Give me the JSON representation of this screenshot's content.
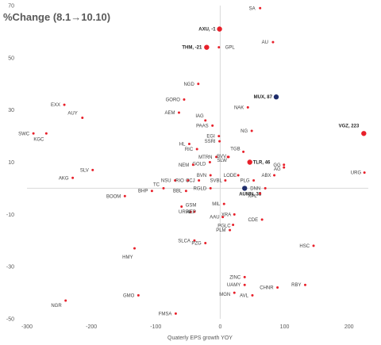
{
  "chart_data": {
    "type": "scatter",
    "title": "%Change  (8.1→10.10)",
    "xlabel": "Quaterly EPS growth YOY",
    "ylabel": "",
    "xlim": [
      -300,
      230
    ],
    "ylim": [
      -50,
      70
    ],
    "xticks": [
      -300,
      -200,
      -100,
      0,
      100,
      200
    ],
    "yticks": [
      70,
      50,
      30,
      10,
      -10,
      -30,
      -50
    ],
    "grid": false,
    "colors": {
      "normal": "#e8202a",
      "highlight_red": "#e8202a",
      "highlight_navy": "#1f2d6b",
      "axis": "#d9d9d9"
    },
    "points": [
      {
        "label": "SA",
        "x": 62,
        "y": 69
      },
      {
        "label": "AXU, -1",
        "x": -1,
        "y": 61,
        "highlight": "red"
      },
      {
        "label": "THM, -21",
        "x": -21,
        "y": 54,
        "highlight": "red"
      },
      {
        "label": "GPL",
        "x": -2,
        "y": 54
      },
      {
        "label": "AU",
        "x": 82,
        "y": 56
      },
      {
        "label": "NGD",
        "x": -34,
        "y": 40
      },
      {
        "label": "MUX, 87",
        "x": 87,
        "y": 35,
        "highlight": "navy"
      },
      {
        "label": "GORO",
        "x": -56,
        "y": 34
      },
      {
        "label": "NAK",
        "x": 43,
        "y": 31
      },
      {
        "label": "EXX",
        "x": -242,
        "y": 32
      },
      {
        "label": "AEM",
        "x": -64,
        "y": 29
      },
      {
        "label": "AUY",
        "x": -214,
        "y": 27
      },
      {
        "label": "IAG",
        "x": -23,
        "y": 26
      },
      {
        "label": "PAAS",
        "x": -12,
        "y": 24
      },
      {
        "label": "NG",
        "x": 49,
        "y": 22
      },
      {
        "label": "VGZ, 223",
        "x": 223,
        "y": 21,
        "highlight": "red"
      },
      {
        "label": "SWC",
        "x": -290,
        "y": 21
      },
      {
        "label": "KGC",
        "x": -270,
        "y": 21
      },
      {
        "label": "EGI",
        "x": -2,
        "y": 20
      },
      {
        "label": "SSRI",
        "x": -1,
        "y": 18
      },
      {
        "label": "HL",
        "x": -48,
        "y": 17
      },
      {
        "label": "RIC",
        "x": -36,
        "y": 15
      },
      {
        "label": "TGB",
        "x": 36,
        "y": 14
      },
      {
        "label": "MTRN",
        "x": -6,
        "y": 12
      },
      {
        "label": "GOLD",
        "x": -16,
        "y": 10
      },
      {
        "label": "BVV",
        "x": 12,
        "y": 12
      },
      {
        "label": "SLW",
        "x": 13,
        "y": 12
      },
      {
        "label": "TLR, 46",
        "x": 46,
        "y": 10,
        "highlight": "red"
      },
      {
        "label": "GG",
        "x": 99,
        "y": 9
      },
      {
        "label": "AG",
        "x": 99,
        "y": 8
      },
      {
        "label": "SLV",
        "x": -198,
        "y": 7
      },
      {
        "label": "NEM",
        "x": -42,
        "y": 9
      },
      {
        "label": "URG",
        "x": 224,
        "y": 6
      },
      {
        "label": "ABX",
        "x": 84,
        "y": 5
      },
      {
        "label": "AKG",
        "x": -229,
        "y": 4
      },
      {
        "label": "BVN",
        "x": -15,
        "y": 5
      },
      {
        "label": "LODE",
        "x": 28,
        "y": 5
      },
      {
        "label": "SVBL",
        "x": 8,
        "y": 3
      },
      {
        "label": "NSU",
        "x": -70,
        "y": 3
      },
      {
        "label": "RIO",
        "x": -50,
        "y": 3
      },
      {
        "label": "CCJ",
        "x": -33,
        "y": 3
      },
      {
        "label": "PLG",
        "x": 52,
        "y": 3
      },
      {
        "label": "TC",
        "x": -88,
        "y": 0
      },
      {
        "label": "RGLD",
        "x": -15,
        "y": 0
      },
      {
        "label": "AUMN, 38",
        "x": 38,
        "y": 0,
        "highlight": "navy"
      },
      {
        "label": "DNN",
        "x": 70,
        "y": 0
      },
      {
        "label": "BBL",
        "x": -53,
        "y": -1
      },
      {
        "label": "BHP",
        "x": -106,
        "y": -1
      },
      {
        "label": "XPL",
        "x": 62,
        "y": -2
      },
      {
        "label": "BOOM",
        "x": -148,
        "y": -3
      },
      {
        "label": "MIL",
        "x": 6,
        "y": -6
      },
      {
        "label": "GSM",
        "x": -60,
        "y": -7
      },
      {
        "label": "URRE",
        "x": -46,
        "y": -9
      },
      {
        "label": "AEP",
        "x": -40,
        "y": -9
      },
      {
        "label": "XRA",
        "x": 22,
        "y": -10
      },
      {
        "label": "AAU",
        "x": 4,
        "y": -11
      },
      {
        "label": "CDE",
        "x": 65,
        "y": -12
      },
      {
        "label": "PGLC",
        "x": 20,
        "y": -14
      },
      {
        "label": "PLM",
        "x": 15,
        "y": -16
      },
      {
        "label": "SLCA",
        "x": -40,
        "y": -20
      },
      {
        "label": "PZG",
        "x": -23,
        "y": -21
      },
      {
        "label": "HSC",
        "x": 145,
        "y": -22
      },
      {
        "label": "HMY",
        "x": -133,
        "y": -23
      },
      {
        "label": "ZINC",
        "x": 38,
        "y": -34
      },
      {
        "label": "UAMY",
        "x": 38,
        "y": -37
      },
      {
        "label": "RBY",
        "x": 132,
        "y": -37
      },
      {
        "label": "CHNR",
        "x": 89,
        "y": -38
      },
      {
        "label": "GMO",
        "x": -127,
        "y": -41
      },
      {
        "label": "AVL",
        "x": 50,
        "y": -41
      },
      {
        "label": "MGN",
        "x": 22,
        "y": -40
      },
      {
        "label": "NGR",
        "x": -240,
        "y": -43
      },
      {
        "label": "FMSA",
        "x": -69,
        "y": -48
      }
    ]
  }
}
